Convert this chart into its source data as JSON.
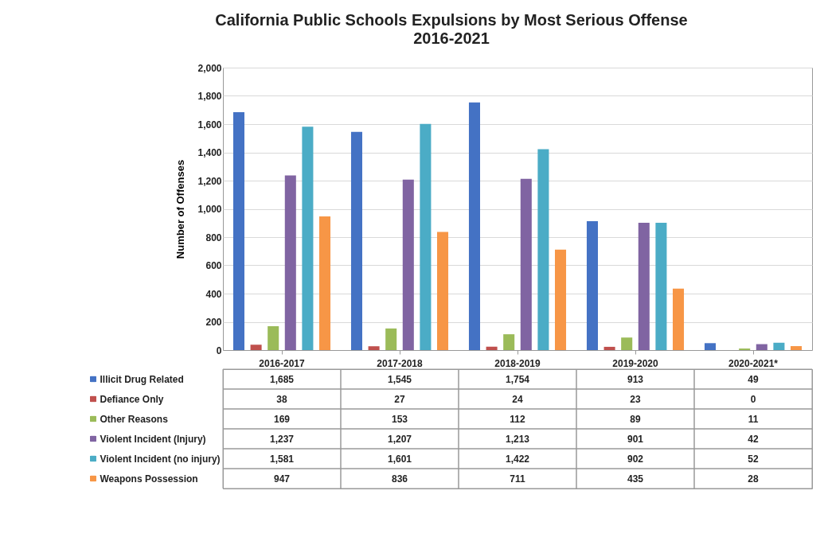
{
  "chart_data": {
    "type": "bar",
    "title": "California Public Schools Expulsions by Most Serious Offense",
    "subtitle": "2016-2021",
    "ylabel": "Number of Offenses",
    "categories": [
      "2016-2017",
      "2017-2018",
      "2018-2019",
      "2019-2020",
      "2020-2021*"
    ],
    "series": [
      {
        "name": "Illicit Drug Related",
        "color": "#4472c4",
        "values": [
          1685,
          1545,
          1754,
          913,
          49
        ],
        "value_labels": [
          "1,685",
          "1,545",
          "1,754",
          "913",
          "49"
        ]
      },
      {
        "name": "Defiance Only",
        "color": "#c0504d",
        "values": [
          38,
          27,
          24,
          23,
          0
        ],
        "value_labels": [
          "38",
          "27",
          "24",
          "23",
          "0"
        ]
      },
      {
        "name": "Other Reasons",
        "color": "#9bbb59",
        "values": [
          169,
          153,
          112,
          89,
          11
        ],
        "value_labels": [
          "169",
          "153",
          "112",
          "89",
          "11"
        ]
      },
      {
        "name": "Violent Incident (Injury)",
        "color": "#8064a2",
        "values": [
          1237,
          1207,
          1213,
          901,
          42
        ],
        "value_labels": [
          "1,237",
          "1,207",
          "1,213",
          "901",
          "42"
        ]
      },
      {
        "name": "Violent Incident (no injury)",
        "color": "#4bacc6",
        "values": [
          1581,
          1601,
          1422,
          902,
          52
        ],
        "value_labels": [
          "1,581",
          "1,601",
          "1,422",
          "902",
          "52"
        ]
      },
      {
        "name": "Weapons Possession",
        "color": "#f79646",
        "values": [
          947,
          836,
          711,
          435,
          28
        ],
        "value_labels": [
          "947",
          "836",
          "711",
          "435",
          "28"
        ]
      }
    ],
    "ylim": [
      0,
      2000
    ],
    "yticks": [
      0,
      200,
      400,
      600,
      800,
      {
        "value": 1000,
        "label": "1,000"
      },
      {
        "value": 1200,
        "label": "1,200"
      },
      {
        "value": 1400,
        "label": "1,400"
      },
      {
        "value": 1600,
        "label": "1,600"
      },
      {
        "value": 1800,
        "label": "1,800"
      },
      {
        "value": 2000,
        "label": "2,000"
      }
    ],
    "grid": "y",
    "legend": "bottom left"
  }
}
